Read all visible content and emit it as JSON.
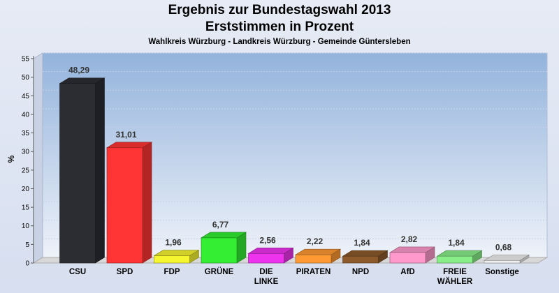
{
  "chart_data": {
    "type": "bar",
    "title": "Ergebnis zur Bundestagswahl 2013",
    "subtitle": "Erststimmen in Prozent",
    "caption": "Wahlkreis Würzburg - Landkreis Würzburg - Gemeinde Güntersleben",
    "ylabel": "%",
    "xlabel": "",
    "ylim": [
      0,
      55
    ],
    "yticks": [
      0,
      5,
      10,
      15,
      20,
      25,
      30,
      35,
      40,
      45,
      50,
      55
    ],
    "grid": true,
    "categories": [
      "CSU",
      "SPD",
      "FDP",
      "GRÜNE",
      "DIE\nLINKE",
      "PIRATEN",
      "NPD",
      "AfD",
      "FREIE\nWÄHLER",
      "Sonstige"
    ],
    "values": [
      48.29,
      31.01,
      1.96,
      6.77,
      2.56,
      2.22,
      1.84,
      2.82,
      1.84,
      0.68
    ],
    "value_labels": [
      "48,29",
      "31,01",
      "1,96",
      "6,77",
      "2,56",
      "2,22",
      "1,84",
      "2,82",
      "1,84",
      "0,68"
    ],
    "colors": [
      "#2b2d33",
      "#ff3535",
      "#f5f530",
      "#33ee33",
      "#ee33ee",
      "#ff9933",
      "#8c5a2b",
      "#ff99cc",
      "#88ee88",
      "#f0f0f0"
    ]
  }
}
